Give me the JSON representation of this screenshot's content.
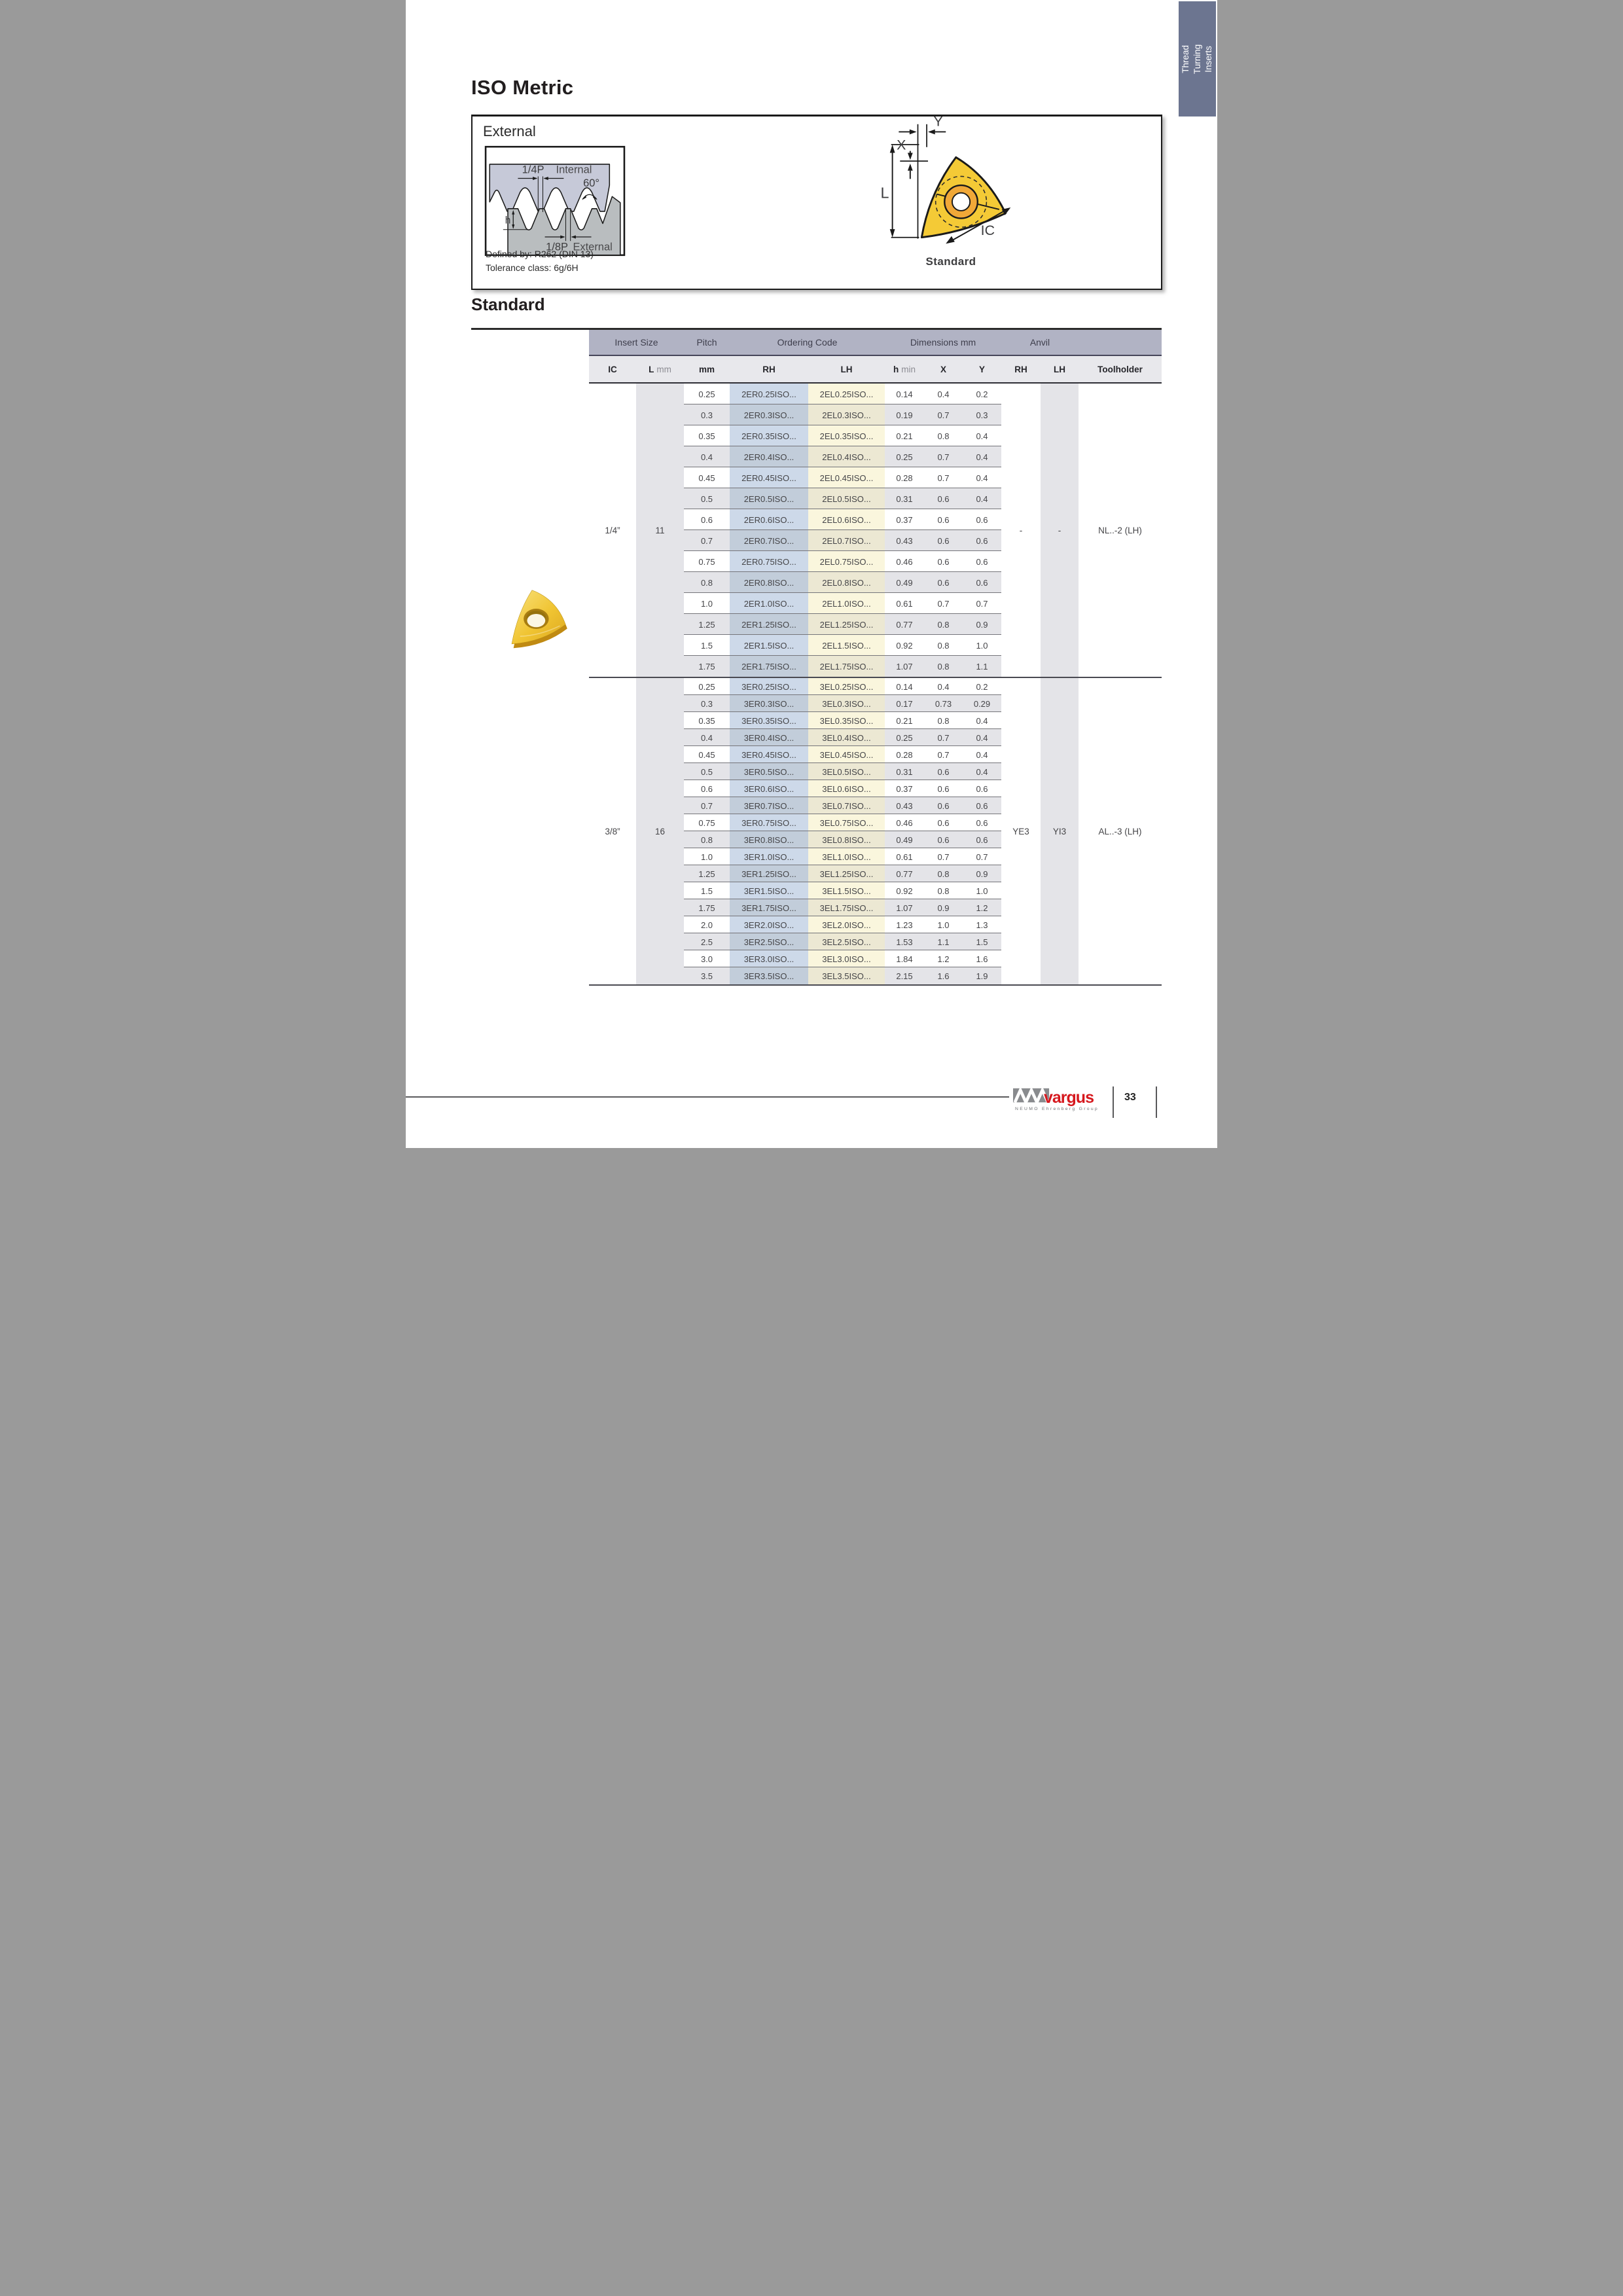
{
  "tab": {
    "label": "Thread Turning Inserts"
  },
  "title": "ISO Metric",
  "external_box": {
    "label": "External",
    "thread_diagram": {
      "quarter_p": "1/4P",
      "internal": "Internal",
      "angle": "60°",
      "h": "h",
      "eighth_p": "1/8P",
      "external": "External"
    },
    "defined_by": "Defined by: R262 (DIN 13)",
    "tolerance": "Tolerance class: 6g/6H",
    "insert_diagram": {
      "x": "X",
      "y": "Y",
      "l": "L",
      "ic": "IC",
      "caption": "Standard"
    }
  },
  "section_title": "Standard",
  "table": {
    "group_headers": {
      "insert_size": "Insert Size",
      "pitch": "Pitch",
      "ordering_code": "Ordering Code",
      "dimensions": "Dimensions mm",
      "anvil": "Anvil"
    },
    "columns": {
      "ic": "IC",
      "l": "L",
      "l_unit": "mm",
      "pitch_unit": "mm",
      "rh": "RH",
      "lh": "LH",
      "h": "h",
      "h_unit": "min",
      "x": "X",
      "y": "Y",
      "anvil_rh": "RH",
      "anvil_lh": "LH",
      "toolholder": "Toolholder"
    },
    "groups": [
      {
        "ic": "1/4”",
        "l_mm": "11",
        "anvil_rh": "-",
        "anvil_lh": "-",
        "toolholder": "NL..-2 (LH)",
        "rows": [
          [
            "0.25",
            "2ER0.25ISO...",
            "2EL0.25ISO...",
            "0.14",
            "0.4",
            "0.2"
          ],
          [
            "0.3",
            "2ER0.3ISO...",
            "2EL0.3ISO...",
            "0.19",
            "0.7",
            "0.3"
          ],
          [
            "0.35",
            "2ER0.35ISO...",
            "2EL0.35ISO...",
            "0.21",
            "0.8",
            "0.4"
          ],
          [
            "0.4",
            "2ER0.4ISO...",
            "2EL0.4ISO...",
            "0.25",
            "0.7",
            "0.4"
          ],
          [
            "0.45",
            "2ER0.45ISO...",
            "2EL0.45ISO...",
            "0.28",
            "0.7",
            "0.4"
          ],
          [
            "0.5",
            "2ER0.5ISO...",
            "2EL0.5ISO...",
            "0.31",
            "0.6",
            "0.4"
          ],
          [
            "0.6",
            "2ER0.6ISO...",
            "2EL0.6ISO...",
            "0.37",
            "0.6",
            "0.6"
          ],
          [
            "0.7",
            "2ER0.7ISO...",
            "2EL0.7ISO...",
            "0.43",
            "0.6",
            "0.6"
          ],
          [
            "0.75",
            "2ER0.75ISO...",
            "2EL0.75ISO...",
            "0.46",
            "0.6",
            "0.6"
          ],
          [
            "0.8",
            "2ER0.8ISO...",
            "2EL0.8ISO...",
            "0.49",
            "0.6",
            "0.6"
          ],
          [
            "1.0",
            "2ER1.0ISO...",
            "2EL1.0ISO...",
            "0.61",
            "0.7",
            "0.7"
          ],
          [
            "1.25",
            "2ER1.25ISO...",
            "2EL1.25ISO...",
            "0.77",
            "0.8",
            "0.9"
          ],
          [
            "1.5",
            "2ER1.5ISO...",
            "2EL1.5ISO...",
            "0.92",
            "0.8",
            "1.0"
          ],
          [
            "1.75",
            "2ER1.75ISO...",
            "2EL1.75ISO...",
            "1.07",
            "0.8",
            "1.1"
          ]
        ]
      },
      {
        "ic": "3/8”",
        "l_mm": "16",
        "anvil_rh": "YE3",
        "anvil_lh": "YI3",
        "toolholder": "AL..-3 (LH)",
        "rows": [
          [
            "0.25",
            "3ER0.25ISO...",
            "3EL0.25ISO...",
            "0.14",
            "0.4",
            "0.2"
          ],
          [
            "0.3",
            "3ER0.3ISO...",
            "3EL0.3ISO...",
            "0.17",
            "0.73",
            "0.29"
          ],
          [
            "0.35",
            "3ER0.35ISO...",
            "3EL0.35ISO...",
            "0.21",
            "0.8",
            "0.4"
          ],
          [
            "0.4",
            "3ER0.4ISO...",
            "3EL0.4ISO...",
            "0.25",
            "0.7",
            "0.4"
          ],
          [
            "0.45",
            "3ER0.45ISO...",
            "3EL0.45ISO...",
            "0.28",
            "0.7",
            "0.4"
          ],
          [
            "0.5",
            "3ER0.5ISO...",
            "3EL0.5ISO...",
            "0.31",
            "0.6",
            "0.4"
          ],
          [
            "0.6",
            "3ER0.6ISO...",
            "3EL0.6ISO...",
            "0.37",
            "0.6",
            "0.6"
          ],
          [
            "0.7",
            "3ER0.7ISO...",
            "3EL0.7ISO...",
            "0.43",
            "0.6",
            "0.6"
          ],
          [
            "0.75",
            "3ER0.75ISO...",
            "3EL0.75ISO...",
            "0.46",
            "0.6",
            "0.6"
          ],
          [
            "0.8",
            "3ER0.8ISO...",
            "3EL0.8ISO...",
            "0.49",
            "0.6",
            "0.6"
          ],
          [
            "1.0",
            "3ER1.0ISO...",
            "3EL1.0ISO...",
            "0.61",
            "0.7",
            "0.7"
          ],
          [
            "1.25",
            "3ER1.25ISO...",
            "3EL1.25ISO...",
            "0.77",
            "0.8",
            "0.9"
          ],
          [
            "1.5",
            "3ER1.5ISO...",
            "3EL1.5ISO...",
            "0.92",
            "0.8",
            "1.0"
          ],
          [
            "1.75",
            "3ER1.75ISO...",
            "3EL1.75ISO...",
            "1.07",
            "0.9",
            "1.2"
          ],
          [
            "2.0",
            "3ER2.0ISO...",
            "3EL2.0ISO...",
            "1.23",
            "1.0",
            "1.3"
          ],
          [
            "2.5",
            "3ER2.5ISO...",
            "3EL2.5ISO...",
            "1.53",
            "1.1",
            "1.5"
          ],
          [
            "3.0",
            "3ER3.0ISO...",
            "3EL3.0ISO...",
            "1.84",
            "1.2",
            "1.6"
          ],
          [
            "3.5",
            "3ER3.5ISO...",
            "3EL3.5ISO...",
            "2.15",
            "1.6",
            "1.9"
          ]
        ]
      }
    ]
  },
  "footer": {
    "brand": "vargus",
    "brand_sub": "NEUMO Ehrenberg Group",
    "page_number": "33"
  },
  "colors": {
    "tab_bg": "#6c7590",
    "header_group_bg": "#b1b3c4",
    "header_sub_bg": "#e8e8ec",
    "row_alt_bg": "#e4e4e8",
    "code_rh_band": "#cdd9e9",
    "code_lh_band": "#faf6dd",
    "brand_red": "#d6181e",
    "insert_yellow": "#f2c73b",
    "diagram_internal_fill": "#c6c9d8",
    "diagram_external_fill": "#b9bdbf"
  }
}
